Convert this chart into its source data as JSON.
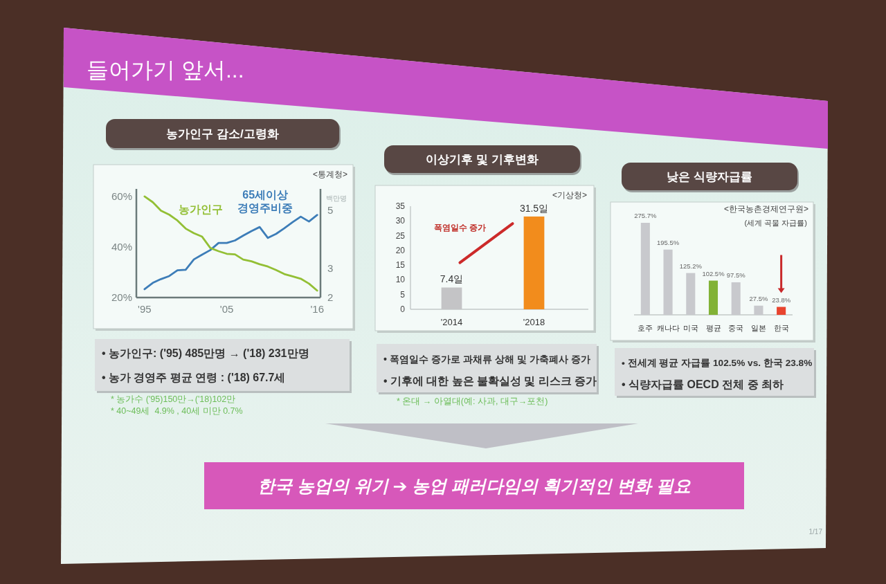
{
  "chart_data": [
    {
      "type": "line",
      "title": "농가인구 감소/고령화",
      "x": [
        1995,
        1996,
        1997,
        1998,
        1999,
        2000,
        2001,
        2002,
        2003,
        2004,
        2005,
        2006,
        2007,
        2008,
        2009,
        2010,
        2011,
        2012,
        2013,
        2014,
        2015,
        2016
      ],
      "xlim": [
        1994,
        2016.4
      ],
      "xticks": [
        {
          "value": 1995,
          "label": "'95"
        },
        {
          "value": 2005,
          "label": "'05"
        },
        {
          "value": 2016,
          "label": "'16"
        }
      ],
      "ylim": [
        20,
        63
      ],
      "yticks": [
        {
          "value": 20,
          "label": "20%"
        },
        {
          "value": 40,
          "label": "40%"
        },
        {
          "value": 60,
          "label": "60%"
        }
      ],
      "y2lim": [
        2,
        5.75
      ],
      "y2ticks": [
        2,
        3,
        5
      ],
      "y2label": "백만명",
      "series": [
        {
          "name": "65세이상 경영주비중",
          "color": "#3d7db8",
          "values": [
            23.3,
            25.8,
            27.3,
            28.5,
            30.8,
            31.0,
            35.1,
            37.0,
            38.8,
            41.6,
            41.6,
            42.6,
            44.5,
            46.3,
            47.9,
            43.6,
            45.2,
            47.4,
            49.8,
            52.0,
            50.1,
            52.7
          ]
        },
        {
          "name": "농가인구",
          "color": "#93bf35",
          "axis": "y2",
          "values": [
            5.49,
            5.29,
            5.0,
            4.86,
            4.66,
            4.38,
            4.22,
            4.1,
            3.71,
            3.6,
            3.51,
            3.49,
            3.31,
            3.25,
            3.15,
            3.07,
            2.95,
            2.81,
            2.73,
            2.65,
            2.48,
            2.24
          ]
        }
      ],
      "annotations": [
        "들어가기 앞서...",
        "<통계청>",
        "• 농가인구: ('95) 485만명 → ('18) 231만명",
        "• 농가 경영주 평균 연령 : ('18) 67.7세",
        "* 농가수 ('95)150만→('18)102만",
        "* 40~49세  4.9% , 40세 미만 0.7%"
      ]
    },
    {
      "type": "bar",
      "title": "이상기후 및 기후변화",
      "categories": [
        "'2014",
        "'2018"
      ],
      "values": [
        7.4,
        31.5
      ],
      "colors": [
        "#c4c4c6",
        "#f28c1c"
      ],
      "value_labels": [
        "7.4일",
        "31.5일"
      ],
      "ylim": [
        0,
        35
      ],
      "yticks": [
        0,
        5,
        10,
        15,
        20,
        25,
        30,
        35
      ],
      "annotations": [
        "<기상청>",
        "폭염일수 증가",
        "• 폭염일수 증가로 과채류 상해 및 가축폐사 증가",
        "• 기후에 대한 높은 불확실성 및 리스크 증가",
        "* 온대 → 아열대(예: 사과, 대구→포천)",
        "한국 농업의 위기 ➔ 농업 패러다임의 획기적인 변화 필요"
      ]
    },
    {
      "type": "bar",
      "title": "낮은 식량자급률",
      "subtitle": "(세계 곡물 자급률)",
      "categories": [
        "호주",
        "캐나다",
        "미국",
        "평균",
        "중국",
        "일본",
        "한국"
      ],
      "values": [
        275.7,
        195.5,
        125.2,
        102.5,
        97.5,
        27.5,
        23.8
      ],
      "colors": [
        "#c8c9cd",
        "#c8c9cd",
        "#c8c9cd",
        "#82b236",
        "#c8c9cd",
        "#c8c9cd",
        "#e8442e"
      ],
      "value_labels": [
        "275.7%",
        "195.5%",
        "125.2%",
        "102.5%",
        "97.5%",
        "27.5%",
        "23.8%"
      ],
      "annotations": [
        "<한국농촌경제연구원>",
        "• 전세계 평균 자급률 102.5% vs. 한국 23.8%",
        "• 식량자급률 OECD 전체 중 최하",
        "1/17"
      ]
    }
  ]
}
